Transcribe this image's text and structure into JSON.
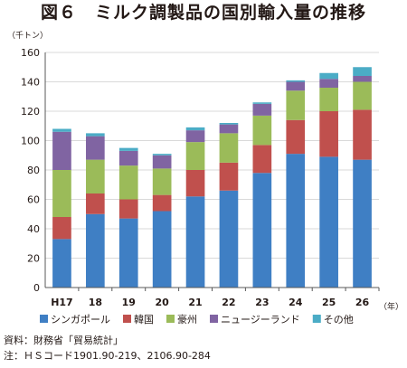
{
  "title": "図６　ミルク調製品の国別輸入量の推移",
  "source": "資料：財務省「貿易統計」",
  "note": "注：ＨＳコード1901.90-219、2106.90-284",
  "chart_data": {
    "type": "bar",
    "stacked": true,
    "categories": [
      "H17",
      "18",
      "19",
      "20",
      "21",
      "22",
      "23",
      "24",
      "25",
      "26"
    ],
    "xunit": "（年）",
    "yunit": "（千トン）",
    "ylim": [
      0,
      160
    ],
    "yticks": [
      0,
      20,
      40,
      60,
      80,
      100,
      120,
      140,
      160
    ],
    "grid": true,
    "legend_position": "bottom",
    "series": [
      {
        "name": "シンガポール",
        "color": "#3f7fc4",
        "values": [
          33,
          50,
          47,
          52,
          62,
          66,
          78,
          91,
          89,
          87
        ]
      },
      {
        "name": "韓国",
        "color": "#c0504d",
        "values": [
          15,
          14,
          13,
          11,
          18,
          19,
          19,
          23,
          31,
          34
        ]
      },
      {
        "name": "豪州",
        "color": "#9bbb59",
        "values": [
          32,
          23,
          23,
          18,
          19,
          20,
          20,
          20,
          16,
          19
        ]
      },
      {
        "name": "ニュージーランド",
        "color": "#8064a2",
        "values": [
          26,
          16,
          10,
          9,
          8,
          6,
          8,
          6,
          6,
          4
        ]
      },
      {
        "name": "その他",
        "color": "#4bacc6",
        "values": [
          2,
          2,
          2,
          1,
          2,
          1,
          1,
          1,
          4,
          6
        ]
      }
    ]
  }
}
